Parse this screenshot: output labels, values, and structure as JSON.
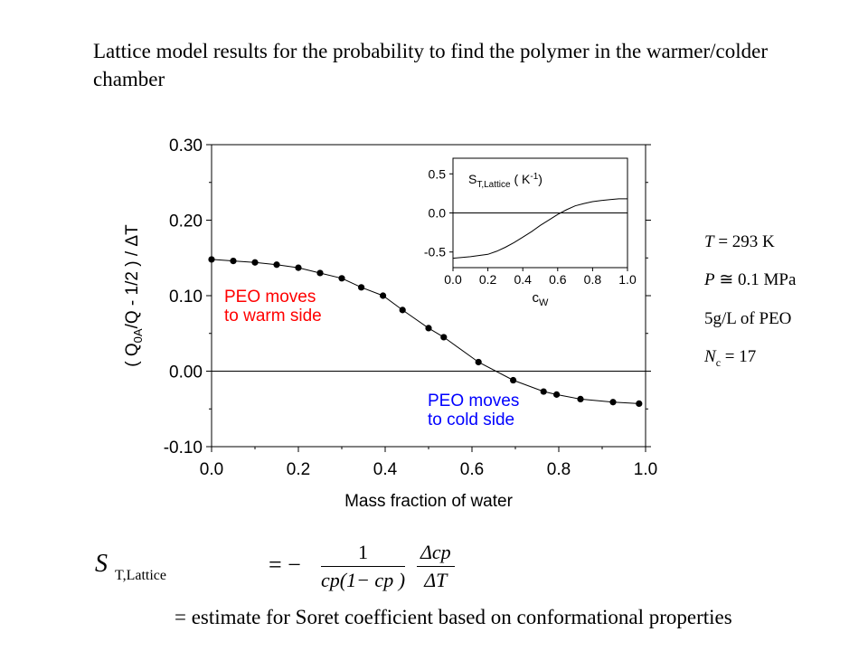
{
  "title": "Lattice model results for the probability to find the polymer in the warmer/colder chamber",
  "chart_data": [
    {
      "type": "line",
      "xlabel": "Mass fraction of water",
      "ylabel": "( Q0A/Q - 1/2 ) / ΔT",
      "ylabel_parts": {
        "open": "( Q",
        "sub": "0A",
        "rest": "/Q - 1/2 ) / ΔT"
      },
      "xlim": [
        0.0,
        1.0
      ],
      "ylim": [
        -0.1,
        0.3
      ],
      "xticks": [
        "0.0",
        "0.2",
        "0.4",
        "0.6",
        "0.8",
        "1.0"
      ],
      "yticks": [
        "-0.10",
        "0.00",
        "0.10",
        "0.20",
        "0.30"
      ],
      "x": [
        0.0,
        0.05,
        0.1,
        0.15,
        0.2,
        0.25,
        0.3,
        0.345,
        0.395,
        0.44,
        0.5,
        0.535,
        0.615,
        0.695,
        0.765,
        0.795,
        0.85,
        0.925,
        0.985
      ],
      "y": [
        0.148,
        0.146,
        0.144,
        0.141,
        0.137,
        0.13,
        0.123,
        0.111,
        0.1,
        0.081,
        0.057,
        0.045,
        0.012,
        -0.012,
        -0.027,
        -0.031,
        -0.037,
        -0.041,
        -0.043
      ],
      "zero_line": true,
      "annotations": [
        {
          "lines": [
            "PEO moves",
            "to warm side"
          ],
          "color": "#ff0000"
        },
        {
          "lines": [
            "PEO moves",
            "to cold side"
          ],
          "color": "#0000ff"
        }
      ]
    },
    {
      "type": "line",
      "inset": true,
      "legend_text": {
        "prefix": "S",
        "sub": "T,Lattice",
        "mid": " ( K",
        "sup": "-1",
        "suffix": ")"
      },
      "xlabel": "cW",
      "xlabel_parts": {
        "main": "c",
        "sub": "W"
      },
      "xlim": [
        0.0,
        1.0
      ],
      "ylim": [
        -0.7,
        0.7
      ],
      "xticks": [
        "0.0",
        "0.2",
        "0.4",
        "0.6",
        "0.8",
        "1.0"
      ],
      "yticks": [
        "-0.5",
        "0.0",
        "0.5"
      ],
      "x": [
        0.0,
        0.1,
        0.2,
        0.25,
        0.3,
        0.35,
        0.4,
        0.45,
        0.5,
        0.55,
        0.6,
        0.65,
        0.7,
        0.75,
        0.8,
        0.85,
        0.9,
        0.95,
        1.0
      ],
      "y": [
        -0.58,
        -0.56,
        -0.53,
        -0.49,
        -0.44,
        -0.38,
        -0.31,
        -0.24,
        -0.16,
        -0.09,
        -0.02,
        0.04,
        0.09,
        0.12,
        0.145,
        0.16,
        0.17,
        0.18,
        0.18
      ],
      "zero_line": true
    }
  ],
  "params": [
    {
      "var": "T",
      "sub": "",
      "rest": " = 293 K"
    },
    {
      "var": "P",
      "sub": "",
      "rest": " ≅ 0.1 MPa"
    },
    {
      "var": "",
      "sub": "",
      "rest": "5g/L of PEO"
    },
    {
      "var": "N",
      "sub": "c",
      "rest": " = 17"
    }
  ],
  "formula": {
    "lhs": "S",
    "lhs_sub": "T,Lattice",
    "eq": "= −",
    "num1": "1",
    "den1": "cp(1− cp )",
    "num2": "Δcp",
    "den2": "ΔT",
    "line2": "= estimate for Soret coefficient based on conformational properties"
  }
}
